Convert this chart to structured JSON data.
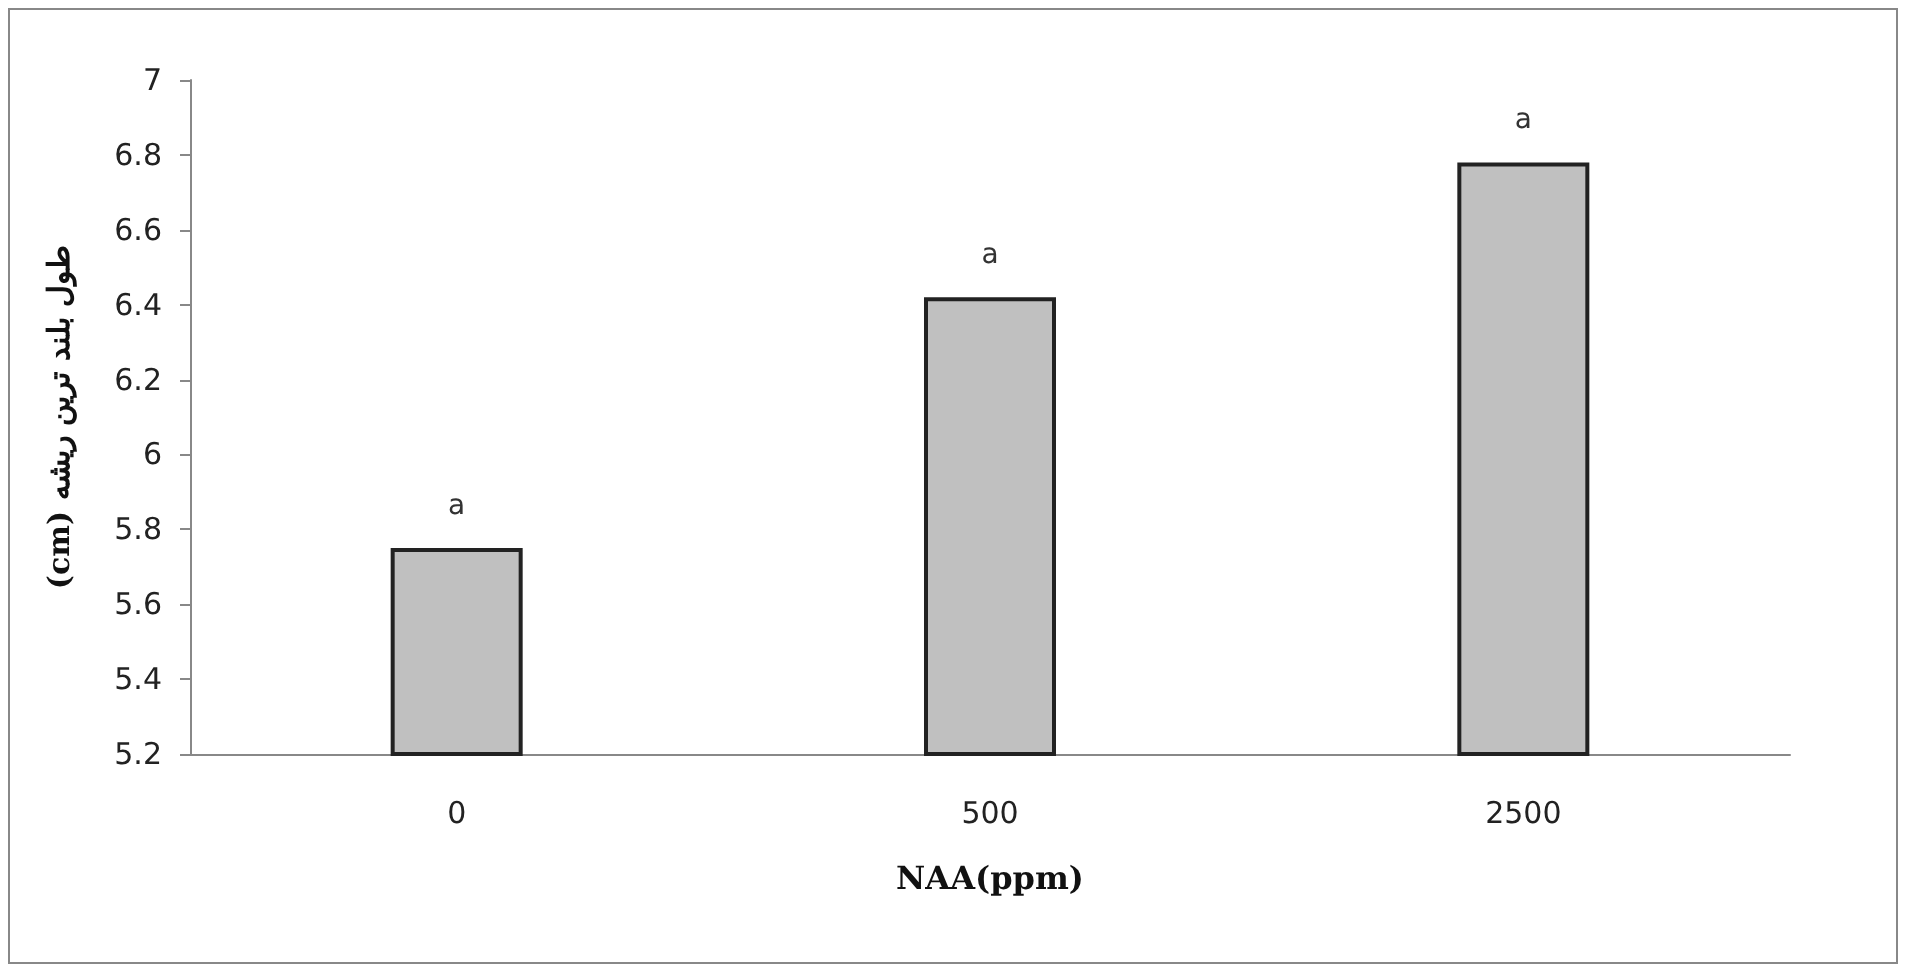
{
  "chart_data": {
    "type": "bar",
    "xlabel": "NAA(ppm)",
    "ylabel": "طول بلند ترین ریشه (cm)",
    "categories": [
      "0",
      "500",
      "2500"
    ],
    "values": [
      5.75,
      6.42,
      6.78
    ],
    "color": "#c0c0c0",
    "ylim": [
      5.2,
      7
    ],
    "yticks": [
      5.2,
      5.4,
      5.6,
      5.8,
      6,
      6.2,
      6.4,
      6.6,
      6.8,
      7
    ],
    "grid": false,
    "annotations": [
      {
        "text": "a",
        "x": "0",
        "y": 5.75
      },
      {
        "text": "a",
        "x": "500",
        "y": 6.42
      },
      {
        "text": "a",
        "x": "2500",
        "y": 6.78
      }
    ]
  }
}
